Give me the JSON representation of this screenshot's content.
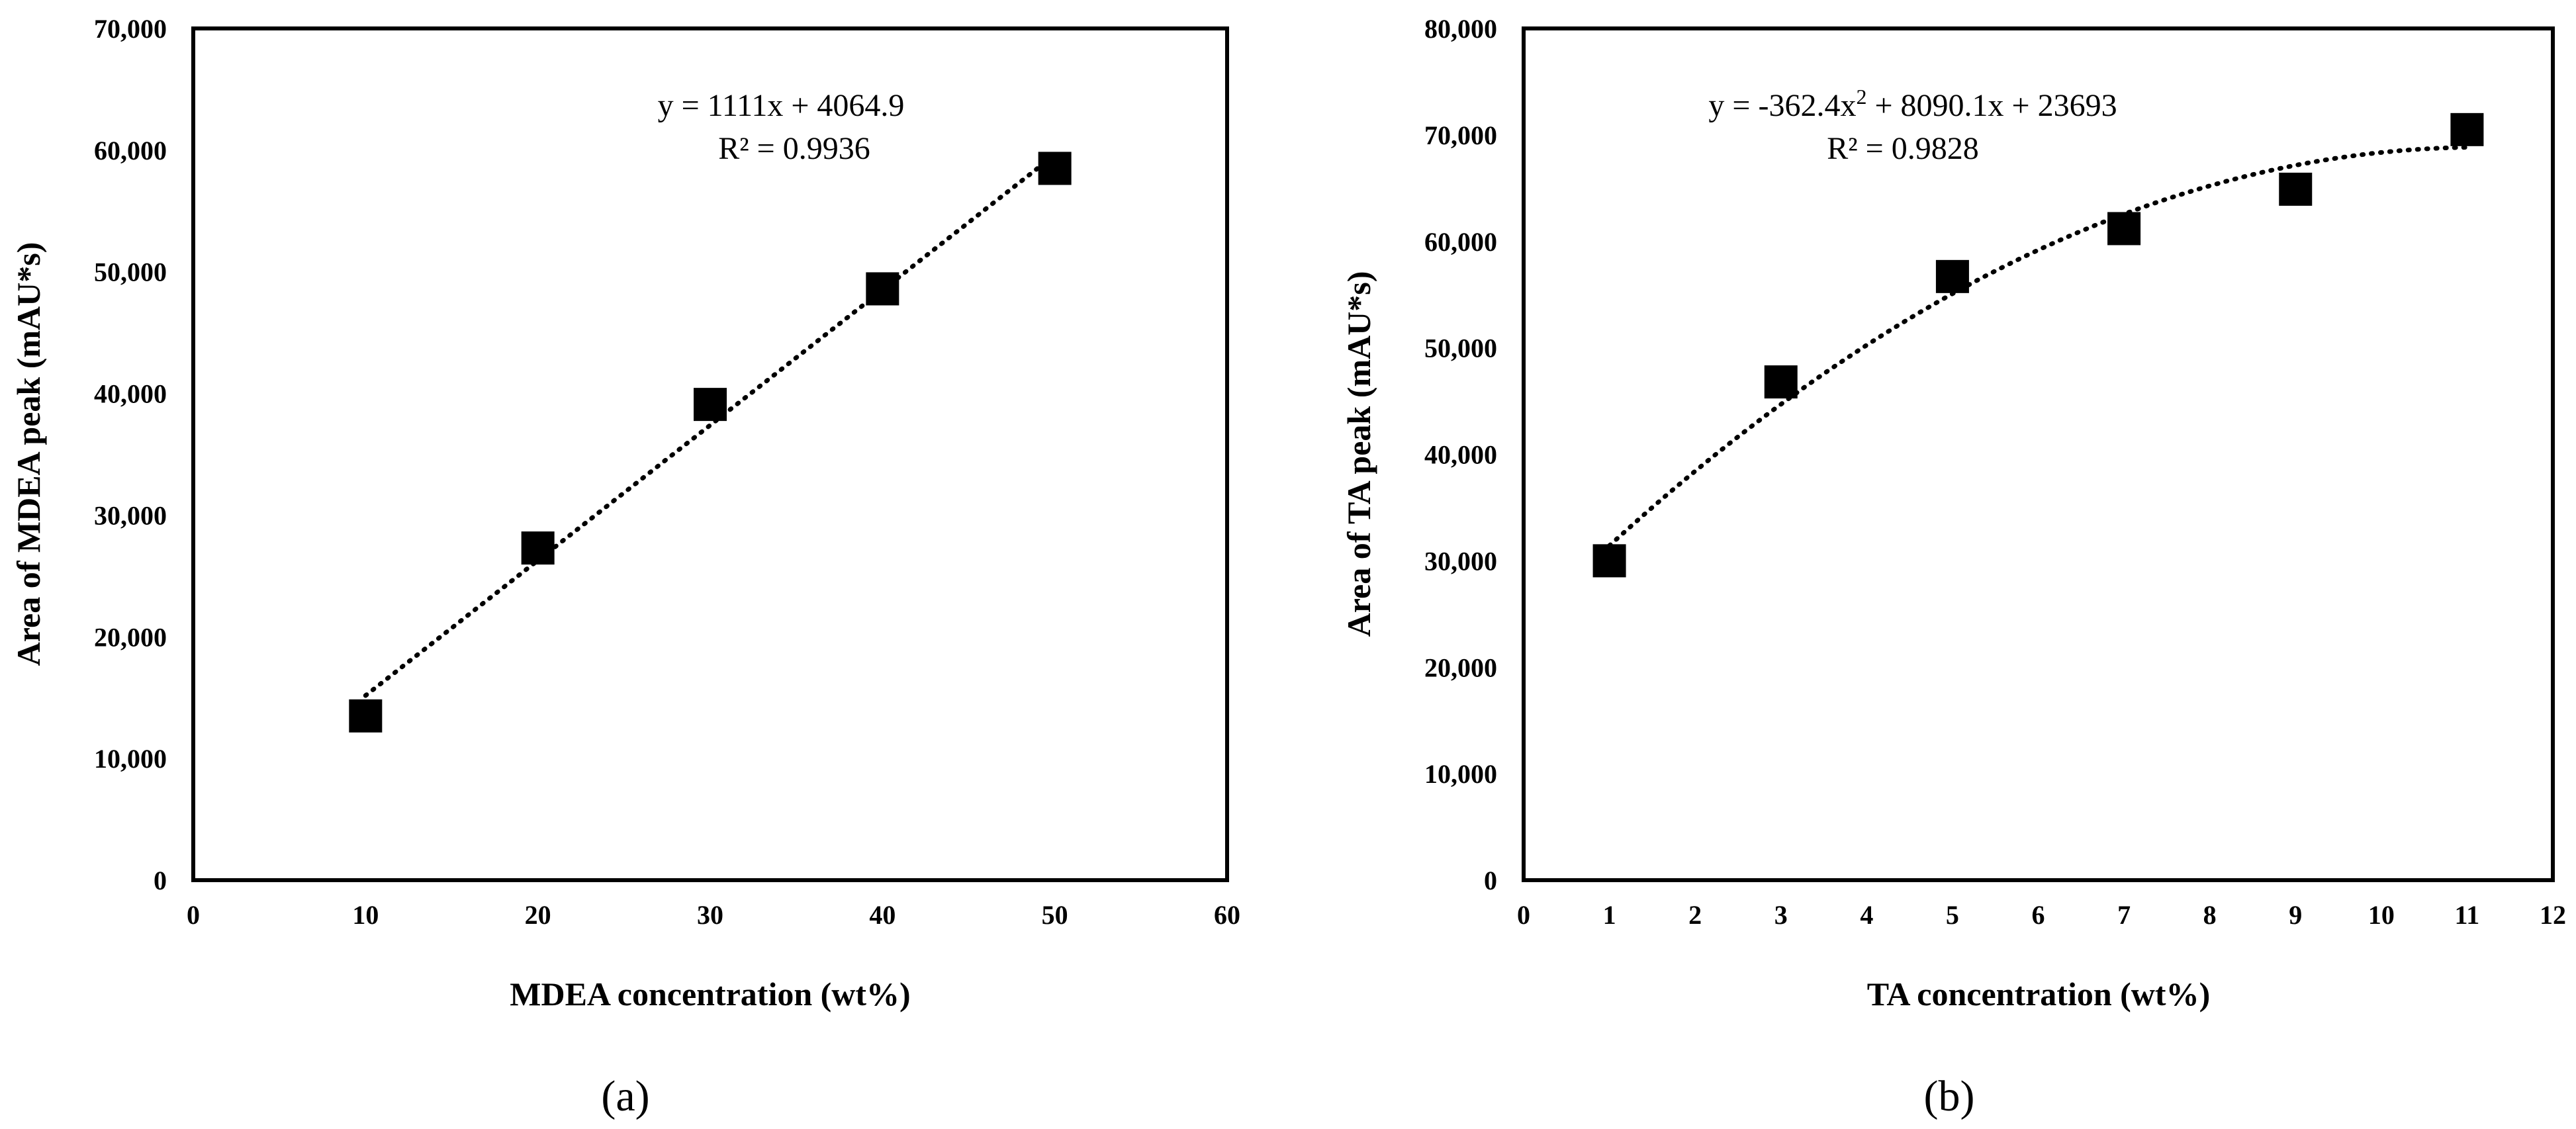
{
  "chart_data": [
    {
      "type": "scatter",
      "panel_label": "(a)",
      "xlabel": "MDEA concentration (wt%)",
      "ylabel": "Area of MDEA peak (mAU*s)",
      "xlim": [
        0,
        60
      ],
      "ylim": [
        0,
        70000
      ],
      "xticks": [
        0,
        10,
        20,
        30,
        40,
        50,
        60
      ],
      "yticks": [
        0,
        10000,
        20000,
        30000,
        40000,
        50000,
        60000,
        70000
      ],
      "xtick_labels": [
        "0",
        "10",
        "20",
        "30",
        "40",
        "50",
        "60"
      ],
      "ytick_labels": [
        "0",
        "10,000",
        "20,000",
        "30,000",
        "40,000",
        "50,000",
        "60,000",
        "70,000"
      ],
      "series": [
        {
          "name": "MDEA peak area",
          "x": [
            10,
            20,
            30,
            40,
            50
          ],
          "y": [
            13500,
            27300,
            39100,
            48600,
            58500
          ]
        }
      ],
      "trendline": {
        "kind": "linear",
        "coefficients": [
          1111,
          4064.9
        ],
        "x_range": [
          10,
          50
        ]
      },
      "equation": {
        "line1": "y = 1111x + 4064.9",
        "line2": "R² = 0.9936"
      },
      "grid": false,
      "legend": "none"
    },
    {
      "type": "scatter",
      "panel_label": "(b)",
      "xlabel": "TA concentration (wt%)",
      "ylabel": "Area of TA peak (mAU*s)",
      "xlim": [
        0,
        12
      ],
      "ylim": [
        0,
        80000
      ],
      "xticks": [
        0,
        1,
        2,
        3,
        4,
        5,
        6,
        7,
        8,
        9,
        10,
        11,
        12
      ],
      "yticks": [
        0,
        10000,
        20000,
        30000,
        40000,
        50000,
        60000,
        70000,
        80000
      ],
      "xtick_labels": [
        "0",
        "1",
        "2",
        "3",
        "4",
        "5",
        "6",
        "7",
        "8",
        "9",
        "10",
        "11",
        "12"
      ],
      "ytick_labels": [
        "0",
        "10,000",
        "20,000",
        "30,000",
        "40,000",
        "50,000",
        "60,000",
        "70,000",
        "80,000"
      ],
      "series": [
        {
          "name": "TA peak area",
          "x": [
            1,
            3,
            5,
            7,
            9,
            11
          ],
          "y": [
            30000,
            46800,
            56700,
            61200,
            64900,
            70500
          ]
        }
      ],
      "trendline": {
        "kind": "poly2",
        "coefficients": [
          -362.4,
          8090.1,
          23693
        ],
        "x_range": [
          1,
          11
        ]
      },
      "equation": {
        "line1_prefix": "y = -362.4x",
        "line1_sup": "2",
        "line1_suffix": " + 8090.1x + 23693",
        "line2": "R² = 0.9828"
      },
      "grid": false,
      "legend": "none"
    }
  ]
}
